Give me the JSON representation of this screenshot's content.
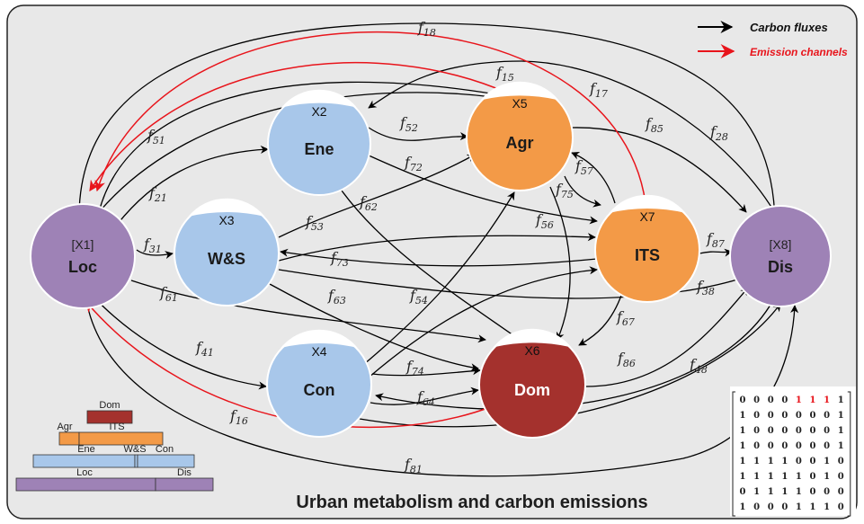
{
  "title": "Urban metabolism and carbon emissions",
  "legend": {
    "carbon": {
      "label": "Carbon fluxes",
      "color": "#000000"
    },
    "emission": {
      "label": "Emission channels",
      "color": "#e8141b"
    }
  },
  "colors": {
    "blue": "#a8c7ea",
    "orange": "#f39a47",
    "purple": "#9e82b6",
    "red": "#a4312d",
    "background": "#e8e8e8"
  },
  "nodes": [
    {
      "key": "loc",
      "id": "[X1]",
      "label": "Loc",
      "color": "purple"
    },
    {
      "key": "ene",
      "id": "X2",
      "label": "Ene",
      "color": "blue"
    },
    {
      "key": "ws",
      "id": "X3",
      "label": "W&S",
      "color": "blue"
    },
    {
      "key": "con",
      "id": "X4",
      "label": "Con",
      "color": "blue"
    },
    {
      "key": "agr",
      "id": "X5",
      "label": "Agr",
      "color": "orange"
    },
    {
      "key": "dom",
      "id": "X6",
      "label": "Dom",
      "color": "red"
    },
    {
      "key": "its",
      "id": "X7",
      "label": "ITS",
      "color": "orange"
    },
    {
      "key": "dis",
      "id": "[X8]",
      "label": "Dis",
      "color": "purple"
    }
  ],
  "flows": [
    {
      "name": "18"
    },
    {
      "name": "15"
    },
    {
      "name": "17"
    },
    {
      "name": "51"
    },
    {
      "name": "52"
    },
    {
      "name": "85"
    },
    {
      "name": "28"
    },
    {
      "name": "72"
    },
    {
      "name": "57"
    },
    {
      "name": "21"
    },
    {
      "name": "62"
    },
    {
      "name": "75"
    },
    {
      "name": "53"
    },
    {
      "name": "56"
    },
    {
      "name": "87"
    },
    {
      "name": "31"
    },
    {
      "name": "73"
    },
    {
      "name": "61"
    },
    {
      "name": "63"
    },
    {
      "name": "54"
    },
    {
      "name": "38"
    },
    {
      "name": "67"
    },
    {
      "name": "41"
    },
    {
      "name": "74"
    },
    {
      "name": "86"
    },
    {
      "name": "48"
    },
    {
      "name": "64"
    },
    {
      "name": "16"
    },
    {
      "name": "81"
    }
  ],
  "pyramid": [
    {
      "labels": [
        "Dom"
      ]
    },
    {
      "labels": [
        "Agr",
        "ITS"
      ]
    },
    {
      "labels": [
        "Ene",
        "W&S",
        "Con"
      ]
    },
    {
      "labels": [
        "Loc",
        "Dis"
      ]
    }
  ],
  "matrix": {
    "rows": [
      [
        "0",
        "0",
        "0",
        "0",
        "1",
        "1",
        "1",
        "1"
      ],
      [
        "1",
        "0",
        "0",
        "0",
        "0",
        "0",
        "0",
        "1"
      ],
      [
        "1",
        "0",
        "0",
        "0",
        "0",
        "0",
        "0",
        "1"
      ],
      [
        "1",
        "0",
        "0",
        "0",
        "0",
        "0",
        "0",
        "1"
      ],
      [
        "1",
        "1",
        "1",
        "1",
        "0",
        "0",
        "1",
        "0"
      ],
      [
        "1",
        "1",
        "1",
        "1",
        "1",
        "0",
        "1",
        "0"
      ],
      [
        "0",
        "1",
        "1",
        "1",
        "1",
        "0",
        "0",
        "0"
      ],
      [
        "1",
        "0",
        "0",
        "0",
        "1",
        "1",
        "1",
        "0"
      ]
    ],
    "highlight": [
      [
        0,
        4
      ],
      [
        0,
        5
      ],
      [
        0,
        6
      ]
    ]
  }
}
